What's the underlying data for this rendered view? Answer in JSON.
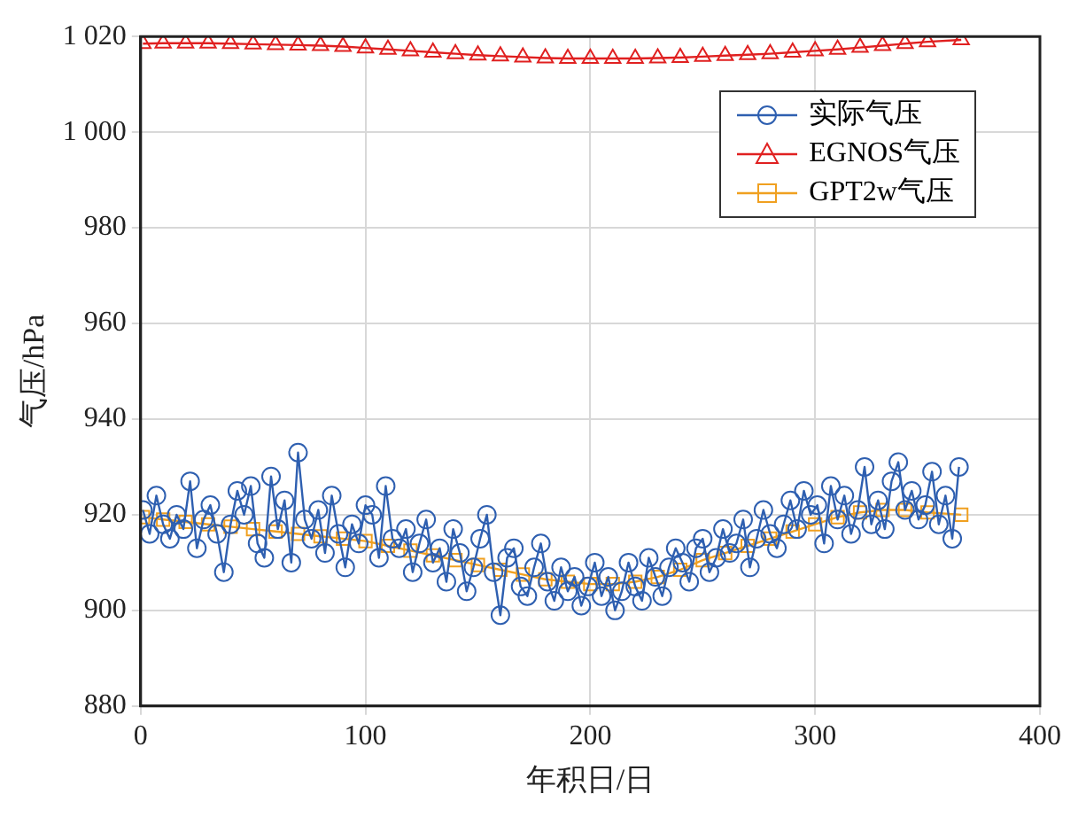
{
  "chart_data": {
    "type": "line",
    "xlabel": "年积日/日",
    "ylabel": "气压/hPa",
    "xlim": [
      0,
      400
    ],
    "xticks": [
      0,
      100,
      200,
      300,
      400
    ],
    "ylim": [
      880,
      1020
    ],
    "yticks": [
      880,
      900,
      920,
      940,
      960,
      980,
      {
        "value": 1000,
        "label": "1 000"
      },
      {
        "value": 1020,
        "label": "1 020"
      }
    ],
    "grid": true,
    "legend": "top right",
    "line_style": "solid",
    "series": [
      {
        "name": "实际气压",
        "color": "#2e5fb0",
        "marker": "circle",
        "x": [
          1,
          4,
          7,
          10,
          13,
          16,
          19,
          22,
          25,
          28,
          31,
          34,
          37,
          40,
          43,
          46,
          49,
          52,
          55,
          58,
          61,
          64,
          67,
          70,
          73,
          76,
          79,
          82,
          85,
          88,
          91,
          94,
          97,
          100,
          103,
          106,
          109,
          112,
          115,
          118,
          121,
          124,
          127,
          130,
          133,
          136,
          139,
          142,
          145,
          148,
          151,
          154,
          157,
          160,
          163,
          166,
          169,
          172,
          175,
          178,
          181,
          184,
          187,
          190,
          193,
          196,
          199,
          202,
          205,
          208,
          211,
          214,
          217,
          220,
          223,
          226,
          229,
          232,
          235,
          238,
          241,
          244,
          247,
          250,
          253,
          256,
          259,
          262,
          265,
          268,
          271,
          274,
          277,
          280,
          283,
          286,
          289,
          292,
          295,
          298,
          301,
          304,
          307,
          310,
          313,
          316,
          319,
          322,
          325,
          328,
          331,
          334,
          337,
          340,
          343,
          346,
          349,
          352,
          355,
          358,
          361,
          364
        ],
        "values": [
          921,
          916,
          924,
          918,
          915,
          920,
          917,
          927,
          913,
          919,
          922,
          916,
          908,
          918,
          925,
          920,
          926,
          914,
          911,
          928,
          917,
          923,
          910,
          933,
          919,
          915,
          921,
          912,
          924,
          916,
          909,
          918,
          914,
          922,
          920,
          911,
          926,
          915,
          913,
          917,
          908,
          914,
          919,
          910,
          913,
          906,
          917,
          912,
          904,
          909,
          915,
          920,
          908,
          899,
          911,
          913,
          905,
          903,
          909,
          914,
          906,
          902,
          909,
          904,
          907,
          901,
          905,
          910,
          903,
          907,
          900,
          904,
          910,
          905,
          902,
          911,
          907,
          903,
          909,
          913,
          910,
          906,
          913,
          915,
          908,
          911,
          917,
          912,
          914,
          919,
          909,
          915,
          921,
          916,
          913,
          918,
          923,
          917,
          925,
          920,
          922,
          914,
          926,
          919,
          924,
          916,
          921,
          930,
          918,
          923,
          917,
          927,
          931,
          921,
          925,
          919,
          922,
          929,
          918,
          924,
          915,
          930
        ]
      },
      {
        "name": "EGNOS气压",
        "color": "#e02020",
        "marker": "triangle",
        "x": [
          1,
          10,
          20,
          30,
          40,
          50,
          60,
          70,
          80,
          90,
          100,
          110,
          120,
          130,
          140,
          150,
          160,
          170,
          180,
          190,
          200,
          210,
          220,
          230,
          240,
          250,
          260,
          270,
          280,
          290,
          300,
          310,
          320,
          330,
          340,
          350,
          365
        ],
        "values": [
          1018.5,
          1018.6,
          1018.6,
          1018.6,
          1018.5,
          1018.4,
          1018.3,
          1018.2,
          1018.1,
          1017.9,
          1017.6,
          1017.3,
          1017,
          1016.7,
          1016.4,
          1016.1,
          1015.9,
          1015.7,
          1015.5,
          1015.4,
          1015.4,
          1015.4,
          1015.4,
          1015.5,
          1015.6,
          1015.8,
          1016,
          1016.2,
          1016.4,
          1016.7,
          1017,
          1017.3,
          1017.7,
          1018.1,
          1018.5,
          1018.9,
          1019.3
        ]
      },
      {
        "name": "GPT2w气压",
        "color": "#f0a020",
        "marker": "square",
        "x": [
          1,
          10,
          20,
          30,
          40,
          50,
          60,
          70,
          80,
          90,
          100,
          110,
          120,
          130,
          140,
          150,
          160,
          170,
          180,
          190,
          200,
          210,
          220,
          230,
          240,
          250,
          260,
          270,
          280,
          290,
          300,
          310,
          320,
          330,
          340,
          350,
          365
        ],
        "values": [
          919.5,
          919,
          918.5,
          918,
          917.5,
          917,
          916.5,
          916,
          915.5,
          915,
          914.5,
          913.5,
          912.5,
          911.5,
          910.5,
          909.5,
          908.5,
          907.5,
          906.5,
          906,
          905.5,
          905.5,
          906,
          907,
          908.5,
          910.5,
          912,
          913.5,
          915,
          916.5,
          918,
          919.5,
          920.5,
          921,
          921,
          920.5,
          920
        ]
      }
    ]
  }
}
